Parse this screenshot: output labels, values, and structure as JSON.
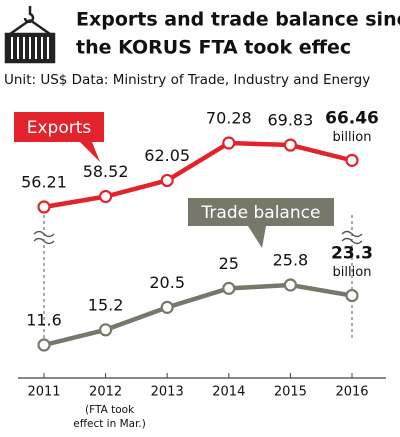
{
  "chart_data": {
    "type": "line",
    "title": [
      "Exports and trade balance since",
      "the KORUS FTA took effec"
    ],
    "subtitle": "Unit: US$ Data: Ministry of Trade, Industry and Energy",
    "categories": [
      "2011",
      "2012",
      "2013",
      "2014",
      "2015",
      "2016"
    ],
    "category_note": {
      "category": 1,
      "lines": [
        "(FTA took",
        "effect in Mar.)"
      ]
    },
    "series": [
      {
        "name": "Exports",
        "color": "#e3232b",
        "values": [
          56.21,
          58.52,
          62.05,
          70.28,
          69.83,
          66.46
        ],
        "last_label_unit": "billion"
      },
      {
        "name": "Trade balance",
        "color": "#77786a",
        "values": [
          11.6,
          15.2,
          20.5,
          25,
          25.8,
          23.3
        ],
        "last_label_unit": "billion"
      }
    ]
  }
}
